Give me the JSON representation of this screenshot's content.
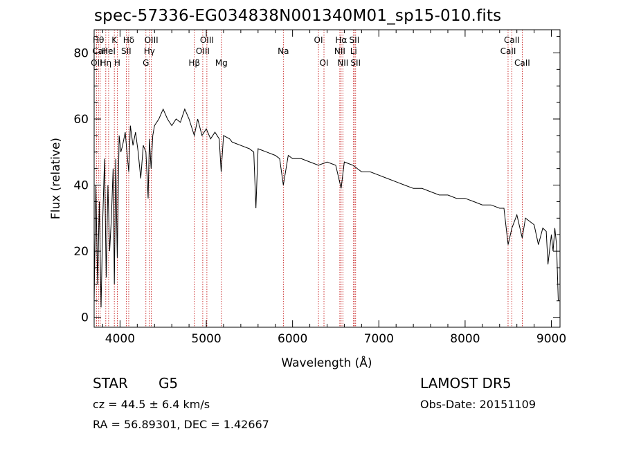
{
  "chart_data": {
    "type": "line",
    "title": "spec-57336-EG034838N001340M01_sp15-010.fits",
    "xlabel": "Wavelength (Å)",
    "ylabel": "Flux (relative)",
    "xlim": [
      3700,
      9100
    ],
    "ylim": [
      -3,
      87
    ],
    "x_ticks": [
      4000,
      5000,
      6000,
      7000,
      8000,
      9000
    ],
    "y_ticks": [
      0,
      20,
      40,
      60,
      80
    ],
    "grid": false,
    "series": [
      {
        "x": [
          3700,
          3720,
          3740,
          3760,
          3780,
          3800,
          3820,
          3840,
          3860,
          3880,
          3900,
          3920,
          3934,
          3950,
          3968,
          3990,
          4010,
          4030,
          4060,
          4080,
          4101,
          4120,
          4150,
          4180,
          4210,
          4240,
          4270,
          4300,
          4326,
          4340,
          4360,
          4380,
          4400,
          4450,
          4500,
          4550,
          4600,
          4650,
          4700,
          4750,
          4800,
          4861,
          4900,
          4950,
          5000,
          5050,
          5100,
          5150,
          5172,
          5200,
          5270,
          5300,
          5400,
          5500,
          5550,
          5575,
          5600,
          5700,
          5800,
          5850,
          5893,
          5950,
          6000,
          6100,
          6200,
          6300,
          6400,
          6500,
          6563,
          6600,
          6700,
          6800,
          6900,
          7000,
          7100,
          7200,
          7300,
          7400,
          7500,
          7600,
          7700,
          7800,
          7900,
          8000,
          8100,
          8200,
          8300,
          8400,
          8450,
          8498,
          8542,
          8600,
          8662,
          8700,
          8750,
          8800,
          8850,
          8900,
          8940,
          8960,
          9000,
          9020,
          9040,
          9060,
          9080
        ],
        "y": [
          5,
          40,
          10,
          35,
          3,
          30,
          48,
          12,
          40,
          20,
          30,
          45,
          10,
          48,
          18,
          55,
          50,
          52,
          56,
          50,
          44,
          58,
          52,
          56,
          50,
          42,
          52,
          50,
          36,
          54,
          45,
          55,
          58,
          60,
          63,
          60,
          58,
          60,
          59,
          63,
          60,
          55,
          60,
          55,
          57,
          54,
          56,
          54,
          44,
          55,
          54,
          53,
          52,
          51,
          50,
          33,
          51,
          50,
          49,
          48,
          40,
          49,
          48,
          48,
          47,
          46,
          47,
          46,
          39,
          47,
          46,
          44,
          44,
          43,
          42,
          41,
          40,
          39,
          39,
          38,
          37,
          37,
          36,
          36,
          35,
          34,
          34,
          33,
          33,
          22,
          27,
          31,
          24,
          30,
          29,
          28,
          22,
          27,
          26,
          16,
          25,
          20,
          27,
          22,
          5
        ]
      }
    ],
    "lines": [
      {
        "x": 3727,
        "row": 3,
        "label": "OII"
      },
      {
        "x": 3750,
        "row": 1,
        "label": "Hθ"
      },
      {
        "x": 3770,
        "row": 2,
        "label": "CaII"
      },
      {
        "x": 3835,
        "row": 3,
        "label": "Hη"
      },
      {
        "x": 3868,
        "row": 2,
        "label": "HeI"
      },
      {
        "x": 3934,
        "row": 1,
        "label": "K"
      },
      {
        "x": 3968,
        "row": 3,
        "label": "H"
      },
      {
        "x": 4072,
        "row": 2,
        "label": "SII"
      },
      {
        "x": 4101,
        "row": 1,
        "label": "Hδ"
      },
      {
        "x": 4300,
        "row": 3,
        "label": "G"
      },
      {
        "x": 4340,
        "row": 2,
        "label": "Hγ"
      },
      {
        "x": 4363,
        "row": 1,
        "label": "OIII"
      },
      {
        "x": 4861,
        "row": 3,
        "label": "Hβ"
      },
      {
        "x": 4959,
        "row": 2,
        "label": "OIII"
      },
      {
        "x": 5007,
        "row": 1,
        "label": "OIII"
      },
      {
        "x": 5175,
        "row": 3,
        "label": "Mg"
      },
      {
        "x": 5893,
        "row": 2,
        "label": "Na"
      },
      {
        "x": 6300,
        "row": 1,
        "label": "OI"
      },
      {
        "x": 6364,
        "row": 3,
        "label": "OI"
      },
      {
        "x": 6548,
        "row": 2,
        "label": "NII"
      },
      {
        "x": 6563,
        "row": 1,
        "label": "Hα"
      },
      {
        "x": 6583,
        "row": 3,
        "label": "NII"
      },
      {
        "x": 6707,
        "row": 2,
        "label": "Li"
      },
      {
        "x": 6716,
        "row": 1,
        "label": "SII"
      },
      {
        "x": 6731,
        "row": 3,
        "label": "SII"
      },
      {
        "x": 8498,
        "row": 2,
        "label": "CaII"
      },
      {
        "x": 8542,
        "row": 1,
        "label": "CaII"
      },
      {
        "x": 8662,
        "row": 3,
        "label": "CaII"
      }
    ]
  },
  "info": {
    "object": "STAR",
    "subclass": "G5",
    "survey": "LAMOST DR5",
    "cz": "cz = 44.5 ± 6.4 km/s",
    "obs_date": "Obs-Date: 20151109",
    "coords": "RA =  56.89301, DEC =   1.42667"
  },
  "colors": {
    "spectrum": "#000000",
    "line_markers": "#c00000",
    "axes": "#000000"
  }
}
